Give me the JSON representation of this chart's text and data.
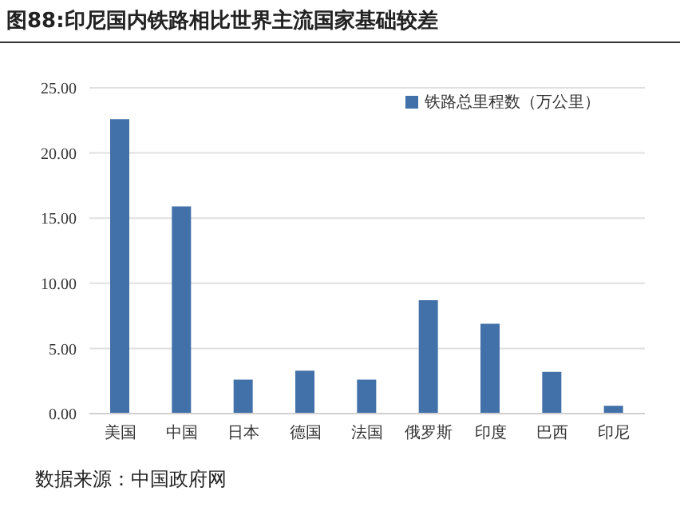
{
  "chart_data": {
    "type": "bar",
    "title": "图88:印尼国内铁路相比世界主流国家基础较差",
    "categories": [
      "美国",
      "中国",
      "日本",
      "德国",
      "法国",
      "俄罗斯",
      "印度",
      "巴西",
      "印尼"
    ],
    "series": [
      {
        "name": "铁路总里程数（万公里）",
        "color": "#4270a8",
        "values": [
          22.6,
          15.9,
          2.6,
          3.3,
          2.6,
          8.7,
          6.9,
          3.2,
          0.6
        ]
      }
    ],
    "ylim": [
      0,
      25
    ],
    "yticks": [
      {
        "value": 0,
        "label": "0.00"
      },
      {
        "value": 5,
        "label": "5.00"
      },
      {
        "value": 10,
        "label": "10.00"
      },
      {
        "value": 15,
        "label": "15.00"
      },
      {
        "value": 20,
        "label": "20.00"
      },
      {
        "value": 25,
        "label": "25.00"
      }
    ],
    "grid": "y",
    "legend": "top right",
    "annotations": [
      "数据来源：中国政府网"
    ]
  }
}
